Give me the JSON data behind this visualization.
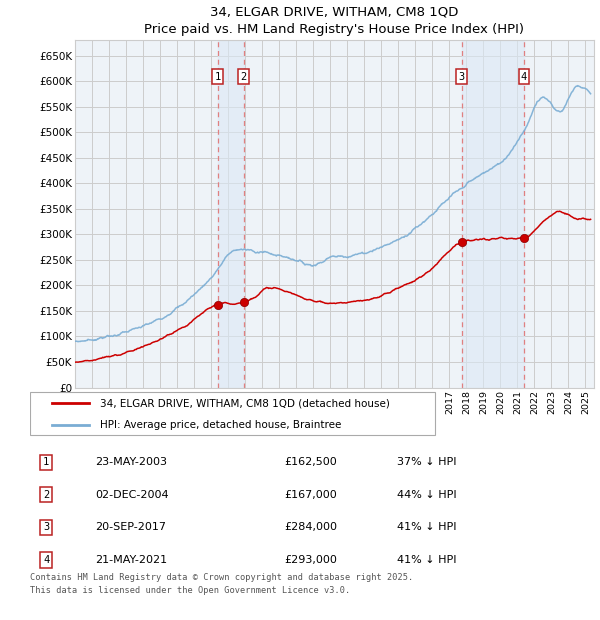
{
  "title": "34, ELGAR DRIVE, WITHAM, CM8 1QD",
  "subtitle": "Price paid vs. HM Land Registry's House Price Index (HPI)",
  "footer": "Contains HM Land Registry data © Crown copyright and database right 2025.\nThis data is licensed under the Open Government Licence v3.0.",
  "legend_line1": "34, ELGAR DRIVE, WITHAM, CM8 1QD (detached house)",
  "legend_line2": "HPI: Average price, detached house, Braintree",
  "ylabel_ticks": [
    "£0",
    "£50K",
    "£100K",
    "£150K",
    "£200K",
    "£250K",
    "£300K",
    "£350K",
    "£400K",
    "£450K",
    "£500K",
    "£550K",
    "£600K",
    "£650K"
  ],
  "ytick_values": [
    0,
    50000,
    100000,
    150000,
    200000,
    250000,
    300000,
    350000,
    400000,
    450000,
    500000,
    550000,
    600000,
    650000
  ],
  "ylim": [
    0,
    680000
  ],
  "xlim_start": 1995.0,
  "xlim_end": 2025.5,
  "transaction_dates": [
    2003.388,
    2004.918,
    2017.722,
    2021.388
  ],
  "transaction_prices": [
    162500,
    167000,
    284000,
    293000
  ],
  "transaction_labels": [
    "1",
    "2",
    "3",
    "4"
  ],
  "transaction_info": [
    {
      "label": "1",
      "date": "23-MAY-2003",
      "price": "£162,500",
      "hpi": "37% ↓ HPI"
    },
    {
      "label": "2",
      "date": "02-DEC-2004",
      "price": "£167,000",
      "hpi": "44% ↓ HPI"
    },
    {
      "label": "3",
      "date": "20-SEP-2017",
      "price": "£284,000",
      "hpi": "41% ↓ HPI"
    },
    {
      "label": "4",
      "date": "21-MAY-2021",
      "price": "£293,000",
      "hpi": "41% ↓ HPI"
    }
  ],
  "hpi_color": "#7aadd4",
  "price_color": "#cc0000",
  "vline_color": "#e08080",
  "grid_color": "#cccccc",
  "bg_color": "#ffffff",
  "plot_bg_color": "#eef3f8",
  "hpi_keypoints_x": [
    1995.0,
    1997.0,
    1999.0,
    2001.0,
    2003.0,
    2004.5,
    2007.5,
    2009.0,
    2010.0,
    2011.5,
    2013.0,
    2014.5,
    2016.0,
    2017.5,
    2019.0,
    2020.0,
    2021.5,
    2022.5,
    2023.5,
    2024.5,
    2025.3
  ],
  "hpi_keypoints_y": [
    90000,
    100000,
    120000,
    155000,
    215000,
    270000,
    255000,
    240000,
    255000,
    260000,
    275000,
    300000,
    340000,
    385000,
    420000,
    440000,
    510000,
    570000,
    540000,
    590000,
    575000
  ],
  "price_keypoints_x": [
    1995.0,
    1997.0,
    1999.0,
    2001.5,
    2003.388,
    2004.918,
    2006.5,
    2008.5,
    2010.0,
    2012.0,
    2014.0,
    2015.5,
    2017.722,
    2019.0,
    2021.388,
    2022.5,
    2023.5,
    2024.5,
    2025.3
  ],
  "price_keypoints_y": [
    50000,
    60000,
    80000,
    120000,
    162500,
    167000,
    195000,
    175000,
    165000,
    170000,
    195000,
    220000,
    284000,
    290000,
    293000,
    325000,
    345000,
    330000,
    330000
  ]
}
